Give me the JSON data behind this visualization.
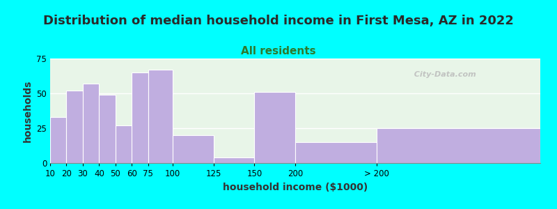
{
  "title": "Distribution of median household income in First Mesa, AZ in 2022",
  "subtitle": "All residents",
  "xlabel": "household income ($1000)",
  "ylabel": "households",
  "background_color": "#00FFFF",
  "plot_bg_top": "#e8f5e8",
  "plot_bg_bottom": "#f5f0ff",
  "bar_color": "#c0aee0",
  "bar_edge_color": "#c0aee0",
  "categories": [
    "10",
    "20",
    "30",
    "40",
    "50",
    "60",
    "75",
    "100",
    "125",
    "150",
    "200",
    "> 200"
  ],
  "values": [
    33,
    52,
    57,
    49,
    27,
    65,
    67,
    20,
    4,
    51,
    15,
    25
  ],
  "ylim": [
    0,
    75
  ],
  "yticks": [
    0,
    25,
    50,
    75
  ],
  "title_fontsize": 13,
  "subtitle_fontsize": 11,
  "subtitle_color": "#2d7a2d",
  "title_color": "#2a2a2a",
  "axis_label_fontsize": 10,
  "tick_fontsize": 8.5,
  "watermark_text": "  City-Data.com",
  "left_edges": [
    0,
    10,
    20,
    30,
    40,
    50,
    60,
    75,
    100,
    125,
    150,
    200
  ],
  "right_edges": [
    10,
    20,
    30,
    40,
    50,
    60,
    75,
    100,
    125,
    150,
    200,
    300
  ]
}
